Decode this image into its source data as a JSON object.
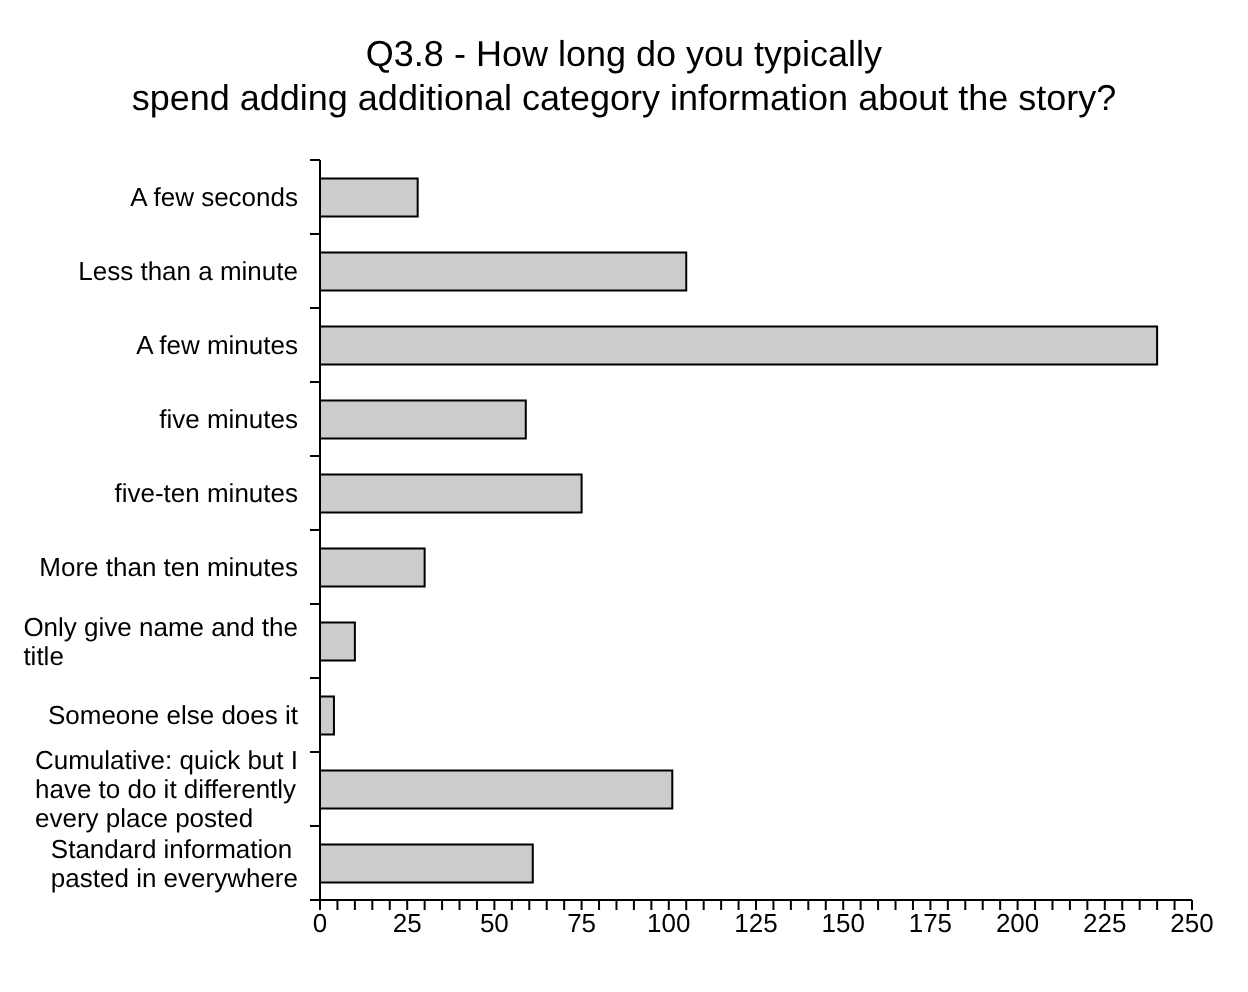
{
  "chart_data": {
    "type": "bar",
    "orientation": "horizontal",
    "title": "Q3.8 - How long do you typically\nspend adding additional category information about the story?",
    "categories": [
      "A few seconds",
      "Less than a minute",
      "A few minutes",
      "five minutes",
      "five-ten minutes",
      "More than ten minutes",
      "Only give name and the title",
      "Someone else does it",
      "Cumulative: quick but I have to do it differently every place posted",
      "Standard information pasted in everywhere"
    ],
    "values": [
      28,
      105,
      240,
      59,
      75,
      30,
      10,
      4,
      101,
      61
    ],
    "color": "#cccccc",
    "xlim": [
      0,
      250
    ],
    "xticks": [
      0,
      {
        "value": 5,
        "label": null
      },
      {
        "value": 10,
        "label": null
      },
      {
        "value": 15,
        "label": null
      },
      {
        "value": 20,
        "label": null
      },
      25,
      {
        "value": 30,
        "label": null
      },
      {
        "value": 35,
        "label": null
      },
      {
        "value": 40,
        "label": null
      },
      {
        "value": 45,
        "label": null
      },
      50,
      {
        "value": 55,
        "label": null
      },
      {
        "value": 60,
        "label": null
      },
      {
        "value": 65,
        "label": null
      },
      {
        "value": 70,
        "label": null
      },
      75,
      {
        "value": 80,
        "label": null
      },
      {
        "value": 85,
        "label": null
      },
      {
        "value": 90,
        "label": null
      },
      {
        "value": 95,
        "label": null
      },
      100,
      {
        "value": 105,
        "label": null
      },
      {
        "value": 110,
        "label": null
      },
      {
        "value": 115,
        "label": null
      },
      {
        "value": 120,
        "label": null
      },
      125,
      {
        "value": 130,
        "label": null
      },
      {
        "value": 135,
        "label": null
      },
      {
        "value": 140,
        "label": null
      },
      {
        "value": 145,
        "label": null
      },
      150,
      {
        "value": 155,
        "label": null
      },
      {
        "value": 160,
        "label": null
      },
      {
        "value": 165,
        "label": null
      },
      {
        "value": 170,
        "label": null
      },
      175,
      {
        "value": 180,
        "label": null
      },
      {
        "value": 185,
        "label": null
      },
      {
        "value": 190,
        "label": null
      },
      {
        "value": 195,
        "label": null
      },
      200,
      {
        "value": 205,
        "label": null
      },
      {
        "value": 210,
        "label": null
      },
      {
        "value": 215,
        "label": null
      },
      {
        "value": 220,
        "label": null
      },
      225,
      {
        "value": 230,
        "label": null
      },
      {
        "value": 235,
        "label": null
      },
      {
        "value": 240,
        "label": null
      },
      {
        "value": 245,
        "label": null
      },
      250
    ]
  }
}
